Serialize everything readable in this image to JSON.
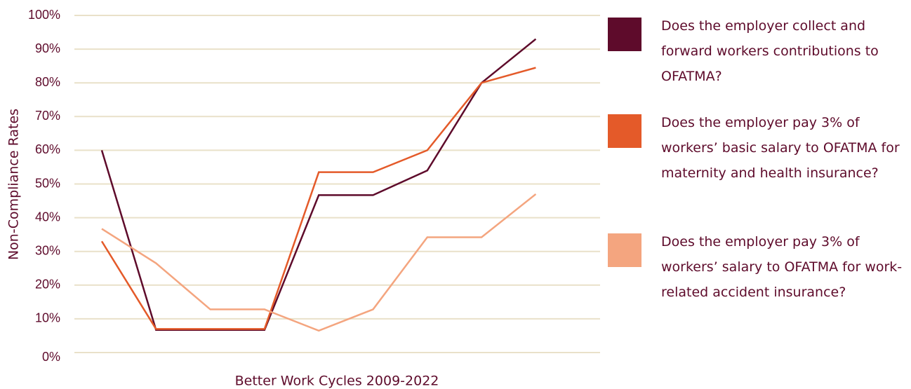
{
  "chart_data": {
    "type": "line",
    "y_label": "Non-Compliance Rates",
    "x_label": "Better Work Cycles 2009-2022",
    "categories": [
      null,
      null,
      null,
      null,
      null,
      null,
      null,
      null,
      null
    ],
    "series": [
      {
        "name": "Does the employer collect and forward workers contributions to OFATMA?",
        "color": "#5e0b2b",
        "values": [
          60,
          6.7,
          6.7,
          6.7,
          46.7,
          46.7,
          54,
          80,
          93
        ]
      },
      {
        "name": "Does the employer pay 3% of workers’ basic salary to OFATMA for maternity and health insurance?",
        "color": "#e45a29",
        "values": [
          33,
          7,
          7,
          7,
          53.5,
          53.5,
          60,
          80,
          84.5
        ]
      },
      {
        "name": "Does the employer pay 3% of workers’ salary to OFATMA for work-related accident insurance?",
        "color": "#f4a57f",
        "values": [
          36.7,
          26.5,
          12.8,
          12.8,
          6.5,
          12.8,
          34.2,
          34.2,
          47
        ]
      }
    ],
    "ylim": [
      0,
      100
    ],
    "yticks": [
      {
        "value": 0,
        "label": "0%"
      },
      {
        "value": 10,
        "label": "10%"
      },
      {
        "value": 20,
        "label": "20%"
      },
      {
        "value": 30,
        "label": "30%"
      },
      {
        "value": 40,
        "label": "40%"
      },
      {
        "value": 50,
        "label": "50%"
      },
      {
        "value": 60,
        "label": "60%"
      },
      {
        "value": 70,
        "label": "70%"
      },
      {
        "value": 80,
        "label": "80%"
      },
      {
        "value": 90,
        "label": "90%"
      },
      {
        "value": 100,
        "label": "100%"
      }
    ],
    "grid": true,
    "legend": "right"
  }
}
